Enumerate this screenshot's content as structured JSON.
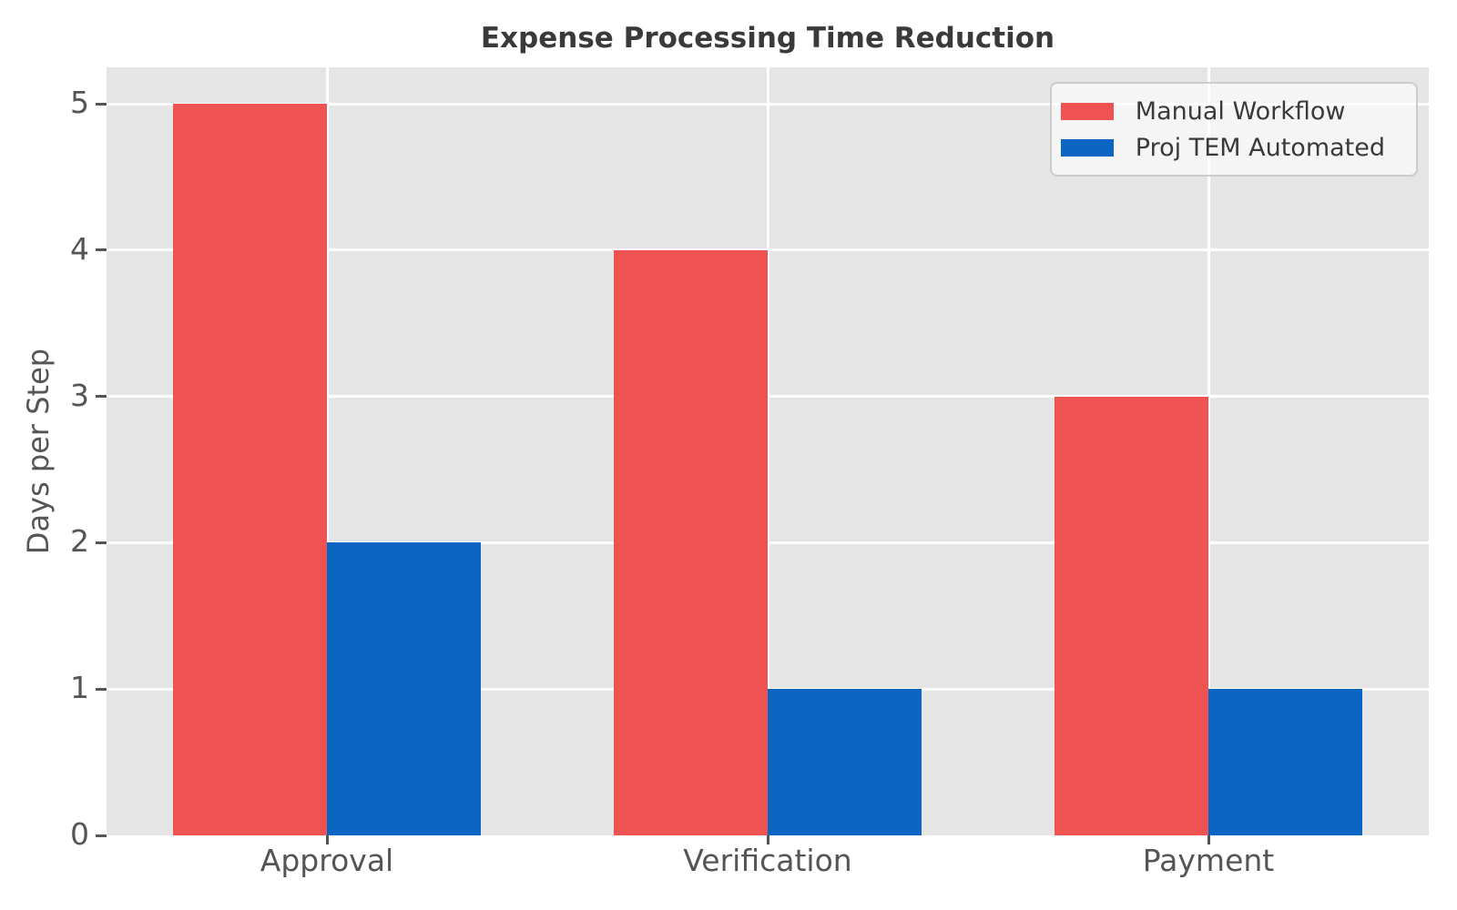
{
  "chart_data": {
    "type": "bar",
    "title": "Expense Processing Time Reduction",
    "ylabel": "Days per Step",
    "xlabel": "",
    "categories": [
      "Approval",
      "Verification",
      "Payment"
    ],
    "series": [
      {
        "name": "Manual Workflow",
        "color": "#EF5351",
        "values": [
          5,
          4,
          3
        ]
      },
      {
        "name": "Proj TEM Automated",
        "color": "#0B66C3",
        "values": [
          2,
          1,
          1
        ]
      }
    ],
    "ylim": [
      0,
      5.25
    ],
    "yticks": [
      0,
      1,
      2,
      3,
      4,
      5
    ],
    "grid": true,
    "bar_width_fraction": 0.35,
    "legend": {
      "position": "upper-right",
      "entries": [
        "Manual Workflow",
        "Proj TEM Automated"
      ]
    },
    "styles": {
      "plot_bg": "#E5E5E5",
      "grid_color": "#FFFFFF",
      "tick_color": "#555555",
      "title_color": "#3A3A3A",
      "legend_bg": "rgba(255,255,255,0.6)",
      "legend_border": "#CCCCCC"
    }
  }
}
